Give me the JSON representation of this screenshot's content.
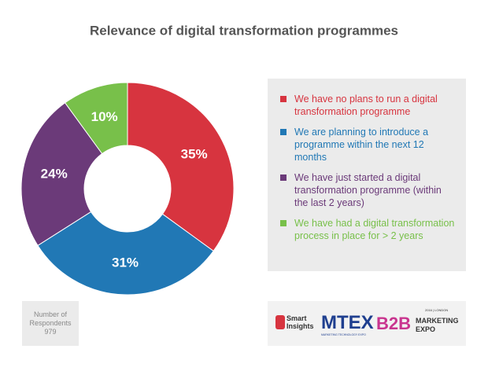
{
  "chart_data": {
    "type": "donut",
    "title": "Relevance of digital transformation programmes",
    "categories": [
      "We have no plans to run a digital transformation programme",
      "We are planning to introduce a programme within the next 12 months",
      "We have just started a digital transformation programme (within the last 2 years)",
      "We have had a digital transformation process in place for > 2 years"
    ],
    "values": [
      35,
      31,
      24,
      10
    ],
    "value_labels": [
      "35%",
      "31%",
      "24%",
      "10%"
    ],
    "colors": [
      "#d7343f",
      "#2178b5",
      "#6b3a79",
      "#78c04a"
    ],
    "legend": "right"
  },
  "respondents": {
    "label": "Number of Respondents",
    "value": 979
  },
  "logos": {
    "smart_insights": "Smart Insights",
    "mtex": "MTEX",
    "mtex_sub": "MARKETING TECHNOLOGY EXPO",
    "b2b": "B2B",
    "b2b_sub": "MARKETING EXPO",
    "b2b_date": "2016 | LONDON"
  }
}
